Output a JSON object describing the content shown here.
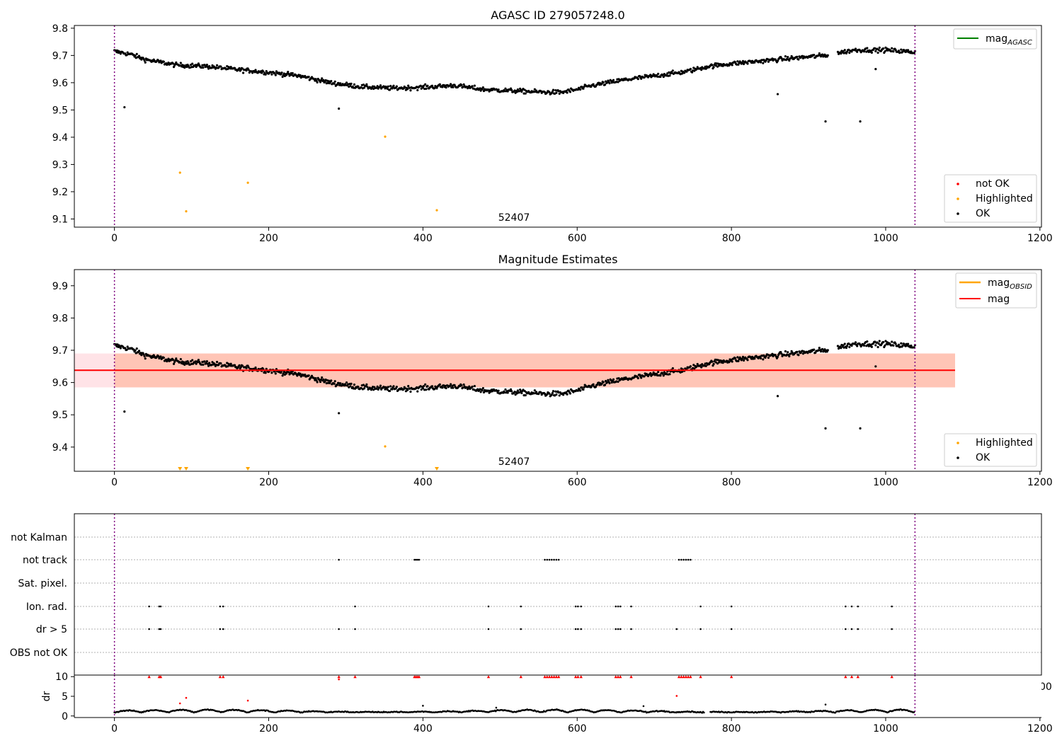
{
  "chart_data": [
    {
      "type": "scatter",
      "title": "AGASC ID 279057248.0",
      "xlim": [
        -52,
        1202
      ],
      "ylim": [
        9.07,
        9.81
      ],
      "xticks": [
        "0",
        "200",
        "400",
        "600",
        "800",
        "1000",
        "1200"
      ],
      "yticks": [
        "9.1",
        "9.2",
        "9.3",
        "9.4",
        "9.5",
        "9.6",
        "9.7",
        "9.8"
      ],
      "vlines": [
        0,
        1038
      ],
      "annotation": {
        "text": "52407",
        "x": 519,
        "y": 9.09
      },
      "legend_top": {
        "label_main": "mag",
        "label_sub": "AGASC",
        "color": "#008000"
      },
      "legend_bottom": [
        {
          "label": "not OK",
          "color": "#ff0000"
        },
        {
          "label": "Highlighted",
          "color": "#ffa500"
        },
        {
          "label": "OK",
          "color": "#000000"
        }
      ],
      "trend_knots": [
        [
          0,
          9.715
        ],
        [
          20,
          9.705
        ],
        [
          40,
          9.685
        ],
        [
          80,
          9.665
        ],
        [
          120,
          9.66
        ],
        [
          160,
          9.648
        ],
        [
          200,
          9.638
        ],
        [
          240,
          9.625
        ],
        [
          280,
          9.6
        ],
        [
          320,
          9.585
        ],
        [
          360,
          9.58
        ],
        [
          400,
          9.583
        ],
        [
          440,
          9.59
        ],
        [
          480,
          9.575
        ],
        [
          520,
          9.57
        ],
        [
          560,
          9.565
        ],
        [
          580,
          9.565
        ],
        [
          600,
          9.575
        ],
        [
          620,
          9.59
        ],
        [
          660,
          9.61
        ],
        [
          700,
          9.625
        ],
        [
          740,
          9.64
        ],
        [
          770,
          9.66
        ],
        [
          800,
          9.67
        ],
        [
          840,
          9.68
        ],
        [
          880,
          9.69
        ],
        [
          920,
          9.7
        ],
        [
          960,
          9.72
        ],
        [
          1000,
          9.72
        ],
        [
          1038,
          9.712
        ]
      ],
      "outliers_ok": [
        [
          13,
          9.51
        ],
        [
          291,
          9.505
        ],
        [
          860,
          9.558
        ],
        [
          922,
          9.458
        ],
        [
          967,
          9.458
        ],
        [
          987,
          9.65
        ]
      ],
      "highlighted": [
        [
          85,
          9.27
        ],
        [
          93,
          9.128
        ],
        [
          173,
          9.233
        ],
        [
          351,
          9.402
        ],
        [
          418,
          9.132
        ]
      ]
    },
    {
      "type": "scatter",
      "title": "Magnitude Estimates",
      "xlim": [
        -52,
        1202
      ],
      "ylim": [
        9.325,
        9.95
      ],
      "xticks": [
        "0",
        "200",
        "400",
        "600",
        "800",
        "1000",
        "1200"
      ],
      "yticks": [
        "9.4",
        "9.5",
        "9.6",
        "9.7",
        "9.8",
        "9.9"
      ],
      "vlines": [
        0,
        1038
      ],
      "annotation": {
        "text": "52407",
        "x": 519,
        "y": 9.345
      },
      "mag_line": {
        "value": 9.638,
        "x_range": [
          -52,
          1090
        ],
        "band": [
          9.585,
          9.69
        ],
        "color": "#ff0000",
        "band_color": "#ffb6c1"
      },
      "obsid_band": {
        "value": 9.638,
        "x_range": [
          0,
          1090
        ],
        "band": [
          9.585,
          9.69
        ],
        "band_color": "#ffa07a"
      },
      "legend_top": [
        {
          "label_main": "mag",
          "label_sub": "OBSID",
          "color": "#ffa500"
        },
        {
          "label_main": "mag",
          "label_sub": "",
          "color": "#ff0000"
        }
      ],
      "legend_bottom": [
        {
          "label": "Highlighted",
          "color": "#ffa500"
        },
        {
          "label": "OK",
          "color": "#000000"
        }
      ],
      "outliers_ok": [
        [
          13,
          9.51
        ],
        [
          291,
          9.505
        ],
        [
          860,
          9.558
        ],
        [
          922,
          9.458
        ],
        [
          967,
          9.458
        ],
        [
          987,
          9.65
        ]
      ],
      "highlighted_points": [
        [
          351,
          9.402
        ]
      ],
      "highlighted_markers_below": [
        85,
        93,
        173,
        418
      ]
    },
    {
      "type": "scatter",
      "title": "",
      "xlim": [
        -52,
        1202
      ],
      "categories": [
        "not Kalman",
        "not track",
        "Sat. pixel.",
        "Ion. rad.",
        "dr > 5",
        "OBS not OK"
      ],
      "flag_points": {
        "not track": [
          291,
          389,
          391,
          393,
          395,
          558,
          561,
          564,
          567,
          570,
          573,
          576,
          732,
          735,
          738,
          741,
          744,
          747
        ],
        "Ion. rad.": [
          45,
          58,
          60,
          137,
          141,
          312,
          485,
          527,
          598,
          601,
          605,
          650,
          653,
          656,
          670,
          760,
          800,
          948,
          956,
          964,
          1008
        ],
        "dr > 5": [
          45,
          58,
          60,
          137,
          141,
          291,
          312,
          485,
          527,
          598,
          601,
          605,
          650,
          653,
          656,
          670,
          729,
          760,
          800,
          948,
          956,
          964,
          1008
        ]
      },
      "vlines": [
        0,
        1038
      ]
    },
    {
      "type": "scatter",
      "title": "",
      "xlim": [
        -52,
        1202
      ],
      "ylim": [
        -0.4,
        10.4
      ],
      "ylabel": "dr",
      "xticks": [
        "0",
        "200",
        "400",
        "600",
        "800",
        "1000",
        "1200"
      ],
      "yticks": [
        "0",
        "5",
        "10"
      ],
      "clipped_tick_text": "00",
      "vlines": [
        0,
        1038
      ],
      "capped_markers": [
        45,
        58,
        60,
        137,
        141,
        291,
        312,
        389,
        391,
        393,
        395,
        485,
        527,
        558,
        561,
        564,
        567,
        570,
        573,
        576,
        598,
        601,
        605,
        650,
        653,
        656,
        670,
        732,
        735,
        738,
        741,
        744,
        747,
        760,
        800,
        948,
        956,
        964,
        1008
      ],
      "red_points": [
        [
          85,
          3.2
        ],
        [
          93,
          4.6
        ],
        [
          173,
          3.9
        ],
        [
          291,
          9.3
        ],
        [
          729,
          5.1
        ]
      ],
      "black_outliers": [
        [
          400,
          2.6
        ],
        [
          495,
          2.1
        ],
        [
          686,
          2.5
        ],
        [
          922,
          2.9
        ]
      ]
    }
  ]
}
